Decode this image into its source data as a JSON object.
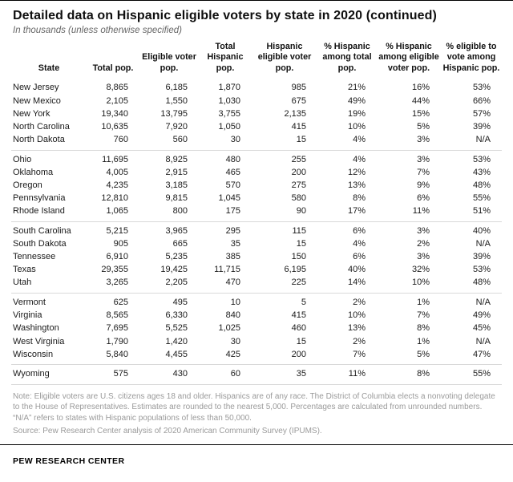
{
  "colors": {
    "rule": "#000000",
    "group_divider": "#d9d9d9",
    "note_text": "#9a9a9a"
  },
  "chart_data": {
    "type": "table",
    "title": "Detailed data on Hispanic eligible voters by state in 2020 (continued)",
    "subtitle": "In thousands (unless otherwise specified)",
    "columns": [
      "State",
      "Total pop.",
      "Eligible voter pop.",
      "Total Hispanic pop.",
      "Hispanic eligible voter pop.",
      "% Hispanic among total pop.",
      "% Hispanic among eligible voter pop.",
      "% eligible to vote among Hispanic pop."
    ],
    "groups": [
      {
        "rows": [
          [
            "New Jersey",
            "8,865",
            "6,185",
            "1,870",
            "985",
            "21%",
            "16%",
            "53%"
          ],
          [
            "New Mexico",
            "2,105",
            "1,550",
            "1,030",
            "675",
            "49%",
            "44%",
            "66%"
          ],
          [
            "New York",
            "19,340",
            "13,795",
            "3,755",
            "2,135",
            "19%",
            "15%",
            "57%"
          ],
          [
            "North Carolina",
            "10,635",
            "7,920",
            "1,050",
            "415",
            "10%",
            "5%",
            "39%"
          ],
          [
            "North Dakota",
            "760",
            "560",
            "30",
            "15",
            "4%",
            "3%",
            "N/A"
          ]
        ]
      },
      {
        "rows": [
          [
            "Ohio",
            "11,695",
            "8,925",
            "480",
            "255",
            "4%",
            "3%",
            "53%"
          ],
          [
            "Oklahoma",
            "4,005",
            "2,915",
            "465",
            "200",
            "12%",
            "7%",
            "43%"
          ],
          [
            "Oregon",
            "4,235",
            "3,185",
            "570",
            "275",
            "13%",
            "9%",
            "48%"
          ],
          [
            "Pennsylvania",
            "12,810",
            "9,815",
            "1,045",
            "580",
            "8%",
            "6%",
            "55%"
          ],
          [
            "Rhode Island",
            "1,065",
            "800",
            "175",
            "90",
            "17%",
            "11%",
            "51%"
          ]
        ]
      },
      {
        "rows": [
          [
            "South Carolina",
            "5,215",
            "3,965",
            "295",
            "115",
            "6%",
            "3%",
            "40%"
          ],
          [
            "South Dakota",
            "905",
            "665",
            "35",
            "15",
            "4%",
            "2%",
            "N/A"
          ],
          [
            "Tennessee",
            "6,910",
            "5,235",
            "385",
            "150",
            "6%",
            "3%",
            "39%"
          ],
          [
            "Texas",
            "29,355",
            "19,425",
            "11,715",
            "6,195",
            "40%",
            "32%",
            "53%"
          ],
          [
            "Utah",
            "3,265",
            "2,205",
            "470",
            "225",
            "14%",
            "10%",
            "48%"
          ]
        ]
      },
      {
        "rows": [
          [
            "Vermont",
            "625",
            "495",
            "10",
            "5",
            "2%",
            "1%",
            "N/A"
          ],
          [
            "Virginia",
            "8,565",
            "6,330",
            "840",
            "415",
            "10%",
            "7%",
            "49%"
          ],
          [
            "Washington",
            "7,695",
            "5,525",
            "1,025",
            "460",
            "13%",
            "8%",
            "45%"
          ],
          [
            "West Virginia",
            "1,790",
            "1,420",
            "30",
            "15",
            "2%",
            "1%",
            "N/A"
          ],
          [
            "Wisconsin",
            "5,840",
            "4,455",
            "425",
            "200",
            "7%",
            "5%",
            "47%"
          ]
        ]
      },
      {
        "rows": [
          [
            "Wyoming",
            "575",
            "430",
            "60",
            "35",
            "11%",
            "8%",
            "55%"
          ]
        ]
      }
    ]
  },
  "note": "Note: Eligible voters are U.S. citizens ages 18 and older. Hispanics are of any race. The District of Columbia elects a nonvoting delegate to the House of Representatives. Estimates are rounded to the nearest 5,000. Percentages are calculated from unrounded numbers. “N/A” refers to states with Hispanic populations of less than 50,000.",
  "source": "Source: Pew Research Center analysis of 2020 American Community Survey (IPUMS).",
  "footer": "PEW RESEARCH CENTER"
}
